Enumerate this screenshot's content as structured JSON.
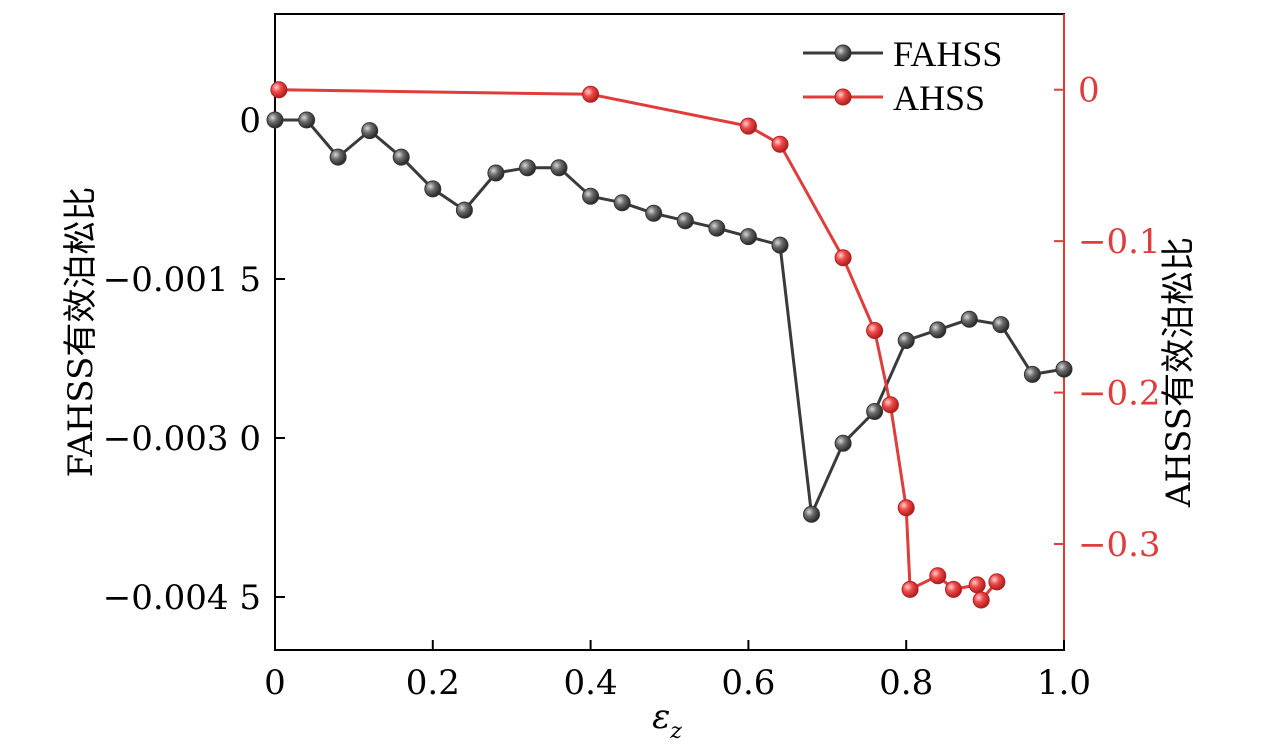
{
  "chart_data": {
    "type": "line",
    "x_axis": {
      "label": "ε",
      "label_subscript": "z",
      "range": [
        0,
        1.0
      ],
      "ticks": [
        0,
        0.2,
        0.4,
        0.6,
        0.8,
        1.0
      ],
      "tick_labels": [
        "0",
        "0.2",
        "0.4",
        "0.6",
        "0.8",
        "1.0"
      ]
    },
    "y_left": {
      "label": "FAHSS有效泊松比",
      "range": [
        -0.005,
        0.001
      ],
      "ticks": [
        0,
        -0.0015,
        -0.003,
        -0.0045
      ],
      "tick_labels": [
        "0",
        "−0.001 5",
        "−0.003 0",
        "−0.004 5"
      ]
    },
    "y_right": {
      "label": "AHSS有效泊松比",
      "range": [
        -0.37,
        0.05
      ],
      "ticks": [
        0,
        -0.1,
        -0.2,
        -0.3
      ],
      "tick_labels": [
        "0",
        "−0.1",
        "−0.2",
        "−0.3"
      ]
    },
    "legend_position": "top-right",
    "grid": false,
    "series": [
      {
        "name": "FAHSS",
        "axis": "left",
        "color": "#3a3a3a",
        "x": [
          0,
          0.04,
          0.08,
          0.12,
          0.16,
          0.2,
          0.24,
          0.28,
          0.32,
          0.36,
          0.4,
          0.44,
          0.48,
          0.52,
          0.56,
          0.6,
          0.64,
          0.68,
          0.72,
          0.76,
          0.8,
          0.84,
          0.88,
          0.92,
          0.96,
          1.0
        ],
        "y": [
          0,
          0,
          -0.00035,
          -0.0001,
          -0.00035,
          -0.00065,
          -0.00085,
          -0.0005,
          -0.00045,
          -0.00045,
          -0.00072,
          -0.00078,
          -0.00088,
          -0.00095,
          -0.00102,
          -0.0011,
          -0.00118,
          -0.00372,
          -0.00305,
          -0.00275,
          -0.00208,
          -0.00198,
          -0.00188,
          -0.00193,
          -0.0024,
          -0.00235
        ]
      },
      {
        "name": "AHSS",
        "axis": "right",
        "color": "#e03c3c",
        "x": [
          0.005,
          0.4,
          0.6,
          0.64,
          0.72,
          0.76,
          0.78,
          0.8,
          0.805,
          0.84,
          0.86,
          0.89,
          0.895,
          0.915
        ],
        "y": [
          0,
          -0.003,
          -0.024,
          -0.036,
          -0.111,
          -0.159,
          -0.208,
          -0.276,
          -0.33,
          -0.321,
          -0.33,
          -0.327,
          -0.337,
          -0.325
        ]
      }
    ]
  }
}
